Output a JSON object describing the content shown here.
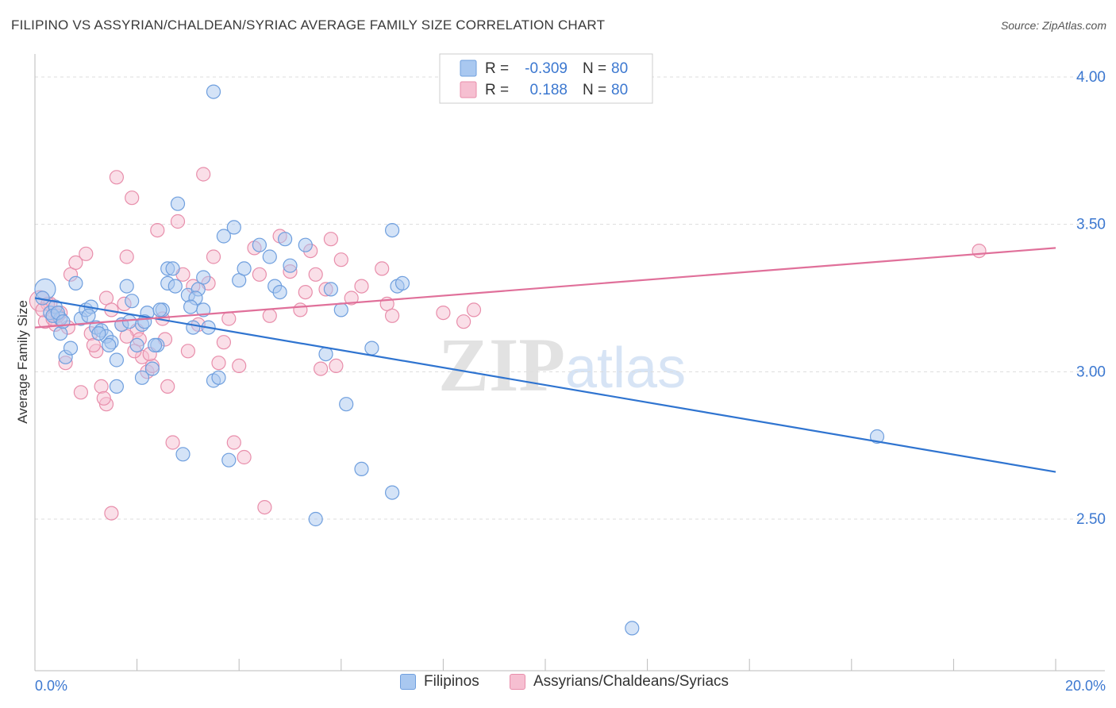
{
  "title": "FILIPINO VS ASSYRIAN/CHALDEAN/SYRIAC AVERAGE FAMILY SIZE CORRELATION CHART",
  "source": "Source: ZipAtlas.com",
  "watermark": {
    "zip": "ZIP",
    "atlas": "atlas"
  },
  "legend": {
    "row1": {
      "r_label": "R =",
      "r_value": "-0.309",
      "n_label": "N =",
      "n_value": "80"
    },
    "row2": {
      "r_label": "R =",
      "r_value": "0.188",
      "n_label": "N =",
      "n_value": "80"
    }
  },
  "bottom_legend": {
    "series1": "Filipinos",
    "series2": "Assyrians/Chaldeans/Syriacs"
  },
  "colors": {
    "blue_fill": "#a9c8f0",
    "blue_stroke": "#6f9fde",
    "blue_line": "#2f74d0",
    "pink_fill": "#f6bfd1",
    "pink_stroke": "#e88eab",
    "pink_line": "#e0709a",
    "axis_text": "#3c78d0",
    "grid": "#dddddd"
  },
  "chart_data": {
    "type": "scatter",
    "title": "FILIPINO VS ASSYRIAN/CHALDEAN/SYRIAC AVERAGE FAMILY SIZE CORRELATION CHART",
    "xlabel": "",
    "ylabel": "Average Family Size",
    "xlim": [
      0,
      20
    ],
    "ylim": [
      2.05,
      4.12
    ],
    "x_tick_labels": [
      "0.0%",
      "20.0%"
    ],
    "y_ticks": [
      2.5,
      3.0,
      3.5,
      4.0
    ],
    "y_tick_labels": [
      "2.50",
      "3.00",
      "3.50",
      "4.00"
    ],
    "grid": true,
    "legend_position": "top-center",
    "series": [
      {
        "name": "Filipinos",
        "color": "#6f9fde",
        "trend": {
          "x": [
            0.0,
            20.0
          ],
          "y": [
            3.25,
            2.66
          ]
        },
        "points": [
          [
            0.2,
            3.28
          ],
          [
            0.3,
            3.2
          ],
          [
            0.4,
            3.22
          ],
          [
            0.5,
            3.18
          ],
          [
            0.5,
            3.13
          ],
          [
            0.6,
            3.05
          ],
          [
            0.7,
            3.08
          ],
          [
            0.8,
            3.3
          ],
          [
            0.9,
            3.18
          ],
          [
            1.0,
            3.21
          ],
          [
            1.1,
            3.22
          ],
          [
            1.2,
            3.15
          ],
          [
            1.3,
            3.14
          ],
          [
            1.4,
            3.12
          ],
          [
            1.5,
            3.1
          ],
          [
            1.6,
            2.95
          ],
          [
            1.6,
            3.04
          ],
          [
            1.7,
            3.16
          ],
          [
            1.8,
            3.29
          ],
          [
            1.9,
            3.24
          ],
          [
            2.0,
            3.09
          ],
          [
            2.1,
            3.16
          ],
          [
            2.1,
            2.98
          ],
          [
            2.2,
            3.2
          ],
          [
            2.3,
            3.01
          ],
          [
            2.4,
            3.09
          ],
          [
            2.5,
            3.21
          ],
          [
            2.6,
            3.3
          ],
          [
            2.6,
            3.35
          ],
          [
            2.7,
            3.35
          ],
          [
            2.8,
            3.57
          ],
          [
            2.9,
            2.72
          ],
          [
            3.0,
            3.26
          ],
          [
            3.1,
            3.15
          ],
          [
            3.2,
            3.28
          ],
          [
            3.3,
            3.21
          ],
          [
            3.3,
            3.32
          ],
          [
            3.4,
            3.15
          ],
          [
            3.5,
            2.97
          ],
          [
            3.6,
            2.98
          ],
          [
            3.7,
            3.46
          ],
          [
            3.8,
            2.7
          ],
          [
            3.9,
            3.49
          ],
          [
            4.0,
            3.31
          ],
          [
            4.1,
            3.35
          ],
          [
            4.4,
            3.43
          ],
          [
            4.6,
            3.39
          ],
          [
            4.7,
            3.29
          ],
          [
            4.8,
            3.27
          ],
          [
            4.9,
            3.45
          ],
          [
            5.0,
            3.36
          ],
          [
            5.3,
            3.43
          ],
          [
            5.5,
            2.5
          ],
          [
            5.7,
            3.06
          ],
          [
            5.8,
            3.28
          ],
          [
            6.0,
            3.21
          ],
          [
            6.1,
            2.89
          ],
          [
            6.4,
            2.67
          ],
          [
            6.6,
            3.08
          ],
          [
            7.0,
            2.59
          ],
          [
            7.0,
            3.48
          ],
          [
            7.1,
            3.29
          ],
          [
            7.2,
            3.3
          ],
          [
            3.5,
            3.95
          ],
          [
            16.5,
            2.78
          ],
          [
            11.7,
            2.13
          ],
          [
            0.15,
            3.25
          ],
          [
            0.35,
            3.19
          ],
          [
            0.45,
            3.2
          ],
          [
            0.55,
            3.17
          ],
          [
            1.05,
            3.19
          ],
          [
            1.25,
            3.13
          ],
          [
            1.45,
            3.09
          ],
          [
            1.85,
            3.17
          ],
          [
            2.15,
            3.17
          ],
          [
            2.35,
            3.09
          ],
          [
            2.45,
            3.21
          ],
          [
            2.75,
            3.29
          ],
          [
            3.15,
            3.25
          ],
          [
            3.05,
            3.22
          ]
        ]
      },
      {
        "name": "Assyrians/Chaldeans/Syriacs",
        "color": "#e88eab",
        "trend": {
          "x": [
            0.0,
            20.0
          ],
          "y": [
            3.15,
            3.42
          ]
        },
        "points": [
          [
            0.1,
            3.24
          ],
          [
            0.2,
            3.17
          ],
          [
            0.3,
            3.23
          ],
          [
            0.4,
            3.16
          ],
          [
            0.5,
            3.2
          ],
          [
            0.6,
            3.03
          ],
          [
            0.7,
            3.33
          ],
          [
            0.8,
            3.37
          ],
          [
            0.9,
            2.93
          ],
          [
            1.0,
            3.4
          ],
          [
            1.1,
            3.13
          ],
          [
            1.2,
            3.07
          ],
          [
            1.3,
            2.95
          ],
          [
            1.4,
            3.25
          ],
          [
            1.5,
            3.21
          ],
          [
            1.6,
            3.66
          ],
          [
            1.7,
            3.16
          ],
          [
            1.8,
            3.39
          ],
          [
            1.9,
            3.59
          ],
          [
            2.0,
            3.14
          ],
          [
            2.1,
            3.05
          ],
          [
            2.2,
            3.0
          ],
          [
            2.3,
            3.02
          ],
          [
            2.4,
            3.48
          ],
          [
            2.5,
            3.18
          ],
          [
            2.6,
            2.95
          ],
          [
            2.7,
            2.76
          ],
          [
            2.8,
            3.51
          ],
          [
            2.9,
            3.33
          ],
          [
            3.0,
            3.07
          ],
          [
            3.1,
            3.29
          ],
          [
            3.2,
            3.16
          ],
          [
            3.3,
            3.67
          ],
          [
            3.4,
            3.3
          ],
          [
            3.5,
            3.39
          ],
          [
            3.6,
            3.03
          ],
          [
            3.7,
            3.1
          ],
          [
            3.8,
            3.18
          ],
          [
            3.9,
            2.76
          ],
          [
            4.0,
            3.02
          ],
          [
            4.1,
            2.71
          ],
          [
            4.3,
            3.42
          ],
          [
            4.4,
            3.33
          ],
          [
            4.5,
            2.54
          ],
          [
            4.6,
            3.19
          ],
          [
            4.8,
            3.46
          ],
          [
            5.0,
            3.34
          ],
          [
            5.2,
            3.21
          ],
          [
            5.3,
            3.27
          ],
          [
            5.4,
            3.41
          ],
          [
            5.5,
            3.33
          ],
          [
            5.6,
            3.01
          ],
          [
            5.7,
            3.28
          ],
          [
            5.8,
            3.45
          ],
          [
            5.9,
            3.02
          ],
          [
            6.0,
            3.38
          ],
          [
            6.2,
            3.25
          ],
          [
            6.4,
            3.29
          ],
          [
            6.8,
            3.35
          ],
          [
            6.9,
            3.23
          ],
          [
            7.0,
            3.19
          ],
          [
            8.0,
            3.2
          ],
          [
            8.4,
            3.17
          ],
          [
            8.6,
            3.21
          ],
          [
            18.5,
            3.41
          ],
          [
            1.5,
            2.52
          ],
          [
            1.4,
            2.89
          ],
          [
            1.8,
            3.12
          ],
          [
            0.25,
            3.23
          ],
          [
            0.45,
            3.19
          ],
          [
            0.65,
            3.15
          ],
          [
            1.15,
            3.09
          ],
          [
            1.35,
            2.91
          ],
          [
            1.75,
            3.23
          ],
          [
            2.05,
            3.11
          ],
          [
            2.25,
            3.06
          ],
          [
            2.55,
            3.11
          ],
          [
            1.95,
            3.07
          ],
          [
            0.15,
            3.21
          ],
          [
            0.35,
            3.18
          ]
        ]
      }
    ]
  }
}
